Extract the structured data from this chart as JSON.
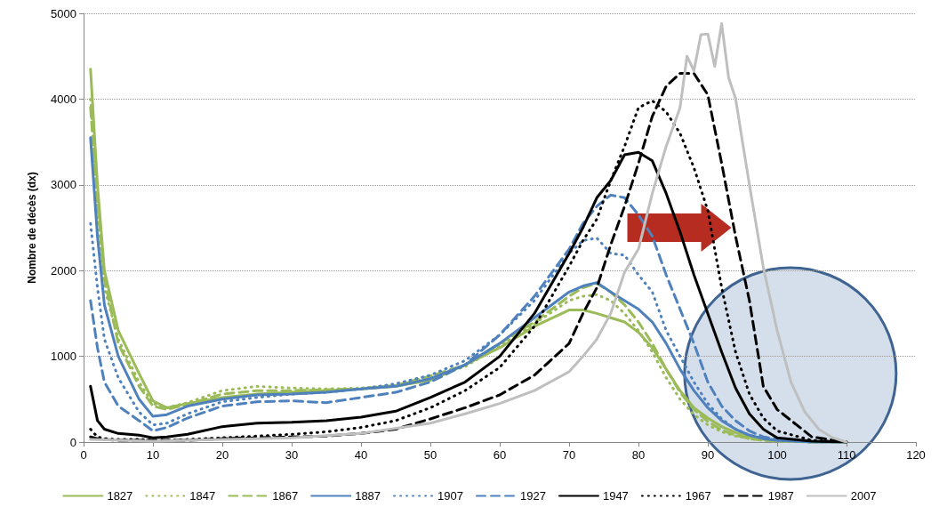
{
  "chart_data": {
    "type": "line",
    "ylabel": "Nombre de décès (dx)",
    "x": [
      1,
      2,
      3,
      5,
      8,
      10,
      12,
      15,
      20,
      25,
      30,
      35,
      40,
      45,
      50,
      55,
      60,
      65,
      70,
      72,
      74,
      76,
      78,
      80,
      82,
      84,
      86,
      88,
      90,
      92,
      94,
      96,
      98,
      100,
      105,
      110
    ],
    "xlim": [
      0,
      120
    ],
    "xticks": [
      0,
      10,
      20,
      30,
      40,
      50,
      60,
      70,
      80,
      90,
      100,
      110,
      120
    ],
    "ylim": [
      0,
      5000
    ],
    "yticks": [
      0,
      1000,
      2000,
      3000,
      4000,
      5000
    ],
    "grid": "y",
    "legend": "bottom",
    "marker": "none",
    "series": [
      {
        "name": "1827",
        "color": "#9bbb59",
        "line_style": "solid",
        "values": [
          4350,
          3000,
          2000,
          1300,
          800,
          480,
          400,
          450,
          520,
          560,
          580,
          600,
          620,
          650,
          720,
          900,
          1100,
          1350,
          1540,
          1540,
          1500,
          1450,
          1400,
          1280,
          1100,
          850,
          600,
          400,
          280,
          180,
          110,
          60,
          30,
          20,
          0,
          0
        ]
      },
      {
        "name": "1847",
        "color": "#9bbb59",
        "line_style": "dotted",
        "values": [
          4000,
          2700,
          1800,
          1200,
          700,
          450,
          400,
          460,
          600,
          650,
          630,
          620,
          630,
          660,
          760,
          880,
          1120,
          1380,
          1650,
          1700,
          1720,
          1650,
          1500,
          1300,
          1050,
          750,
          500,
          320,
          200,
          120,
          70,
          40,
          20,
          10,
          0,
          0
        ]
      },
      {
        "name": "1867",
        "color": "#9bbb59",
        "line_style": "dashed",
        "values": [
          3900,
          2800,
          1900,
          1150,
          650,
          420,
          380,
          440,
          560,
          600,
          600,
          610,
          620,
          660,
          770,
          900,
          1150,
          1400,
          1700,
          1800,
          1850,
          1750,
          1600,
          1400,
          1150,
          850,
          580,
          380,
          240,
          140,
          80,
          40,
          20,
          10,
          0,
          0
        ]
      },
      {
        "name": "1887",
        "color": "#4f81bd",
        "line_style": "solid",
        "values": [
          3550,
          2400,
          1600,
          1000,
          500,
          300,
          320,
          420,
          500,
          550,
          560,
          580,
          620,
          650,
          740,
          900,
          1150,
          1450,
          1750,
          1820,
          1860,
          1750,
          1650,
          1550,
          1400,
          1150,
          850,
          600,
          400,
          250,
          150,
          80,
          40,
          20,
          0,
          0
        ]
      },
      {
        "name": "1907",
        "color": "#4f81bd",
        "line_style": "dotted",
        "values": [
          2550,
          1800,
          1200,
          750,
          350,
          200,
          220,
          330,
          470,
          520,
          560,
          580,
          620,
          680,
          780,
          950,
          1250,
          1650,
          2200,
          2350,
          2380,
          2200,
          2180,
          1950,
          1750,
          1300,
          1000,
          700,
          450,
          270,
          150,
          80,
          40,
          20,
          0,
          0
        ]
      },
      {
        "name": "1927",
        "color": "#4f81bd",
        "line_style": "dashed",
        "values": [
          1650,
          1100,
          700,
          420,
          250,
          130,
          170,
          280,
          420,
          470,
          480,
          460,
          520,
          580,
          700,
          900,
          1250,
          1700,
          2250,
          2550,
          2750,
          2880,
          2850,
          2650,
          2400,
          1950,
          1550,
          1150,
          700,
          420,
          250,
          130,
          60,
          30,
          0,
          0
        ]
      },
      {
        "name": "1947",
        "color": "#000000",
        "line_style": "solid",
        "values": [
          650,
          250,
          150,
          100,
          80,
          50,
          60,
          90,
          180,
          220,
          230,
          250,
          290,
          360,
          520,
          700,
          1000,
          1500,
          2200,
          2500,
          2850,
          3050,
          3350,
          3380,
          3280,
          2900,
          2450,
          1950,
          1500,
          1050,
          630,
          330,
          150,
          50,
          10,
          0
        ]
      },
      {
        "name": "1967",
        "color": "#000000",
        "line_style": "dotted",
        "values": [
          150,
          60,
          40,
          30,
          30,
          20,
          20,
          30,
          50,
          70,
          90,
          120,
          170,
          250,
          400,
          600,
          870,
          1350,
          2050,
          2350,
          2600,
          3050,
          3450,
          3900,
          3980,
          3850,
          3600,
          3200,
          2700,
          1800,
          1050,
          560,
          280,
          130,
          20,
          0
        ]
      },
      {
        "name": "1987",
        "color": "#000000",
        "line_style": "dashed",
        "values": [
          60,
          40,
          30,
          20,
          20,
          20,
          20,
          20,
          40,
          50,
          60,
          70,
          100,
          150,
          270,
          400,
          550,
          780,
          1150,
          1500,
          1800,
          2300,
          2750,
          3250,
          3800,
          4150,
          4300,
          4300,
          4050,
          3250,
          2400,
          1650,
          650,
          380,
          60,
          0
        ]
      },
      {
        "name": "2007",
        "color": "#bfbfbf",
        "line_style": "solid",
        "x": [
          1,
          10,
          20,
          30,
          40,
          50,
          55,
          60,
          65,
          70,
          72,
          74,
          76,
          78,
          80,
          82,
          84,
          86,
          87,
          88,
          89,
          90,
          91,
          92,
          93,
          94,
          95,
          96,
          98,
          100,
          102,
          104,
          106,
          108,
          110
        ],
        "values": [
          30,
          10,
          30,
          50,
          100,
          220,
          330,
          450,
          600,
          820,
          1000,
          1200,
          1500,
          1980,
          2250,
          2900,
          3450,
          3900,
          4500,
          4330,
          4750,
          4760,
          4380,
          4880,
          4250,
          4010,
          3500,
          3000,
          2040,
          1300,
          700,
          350,
          150,
          50,
          0
        ]
      }
    ]
  }
}
